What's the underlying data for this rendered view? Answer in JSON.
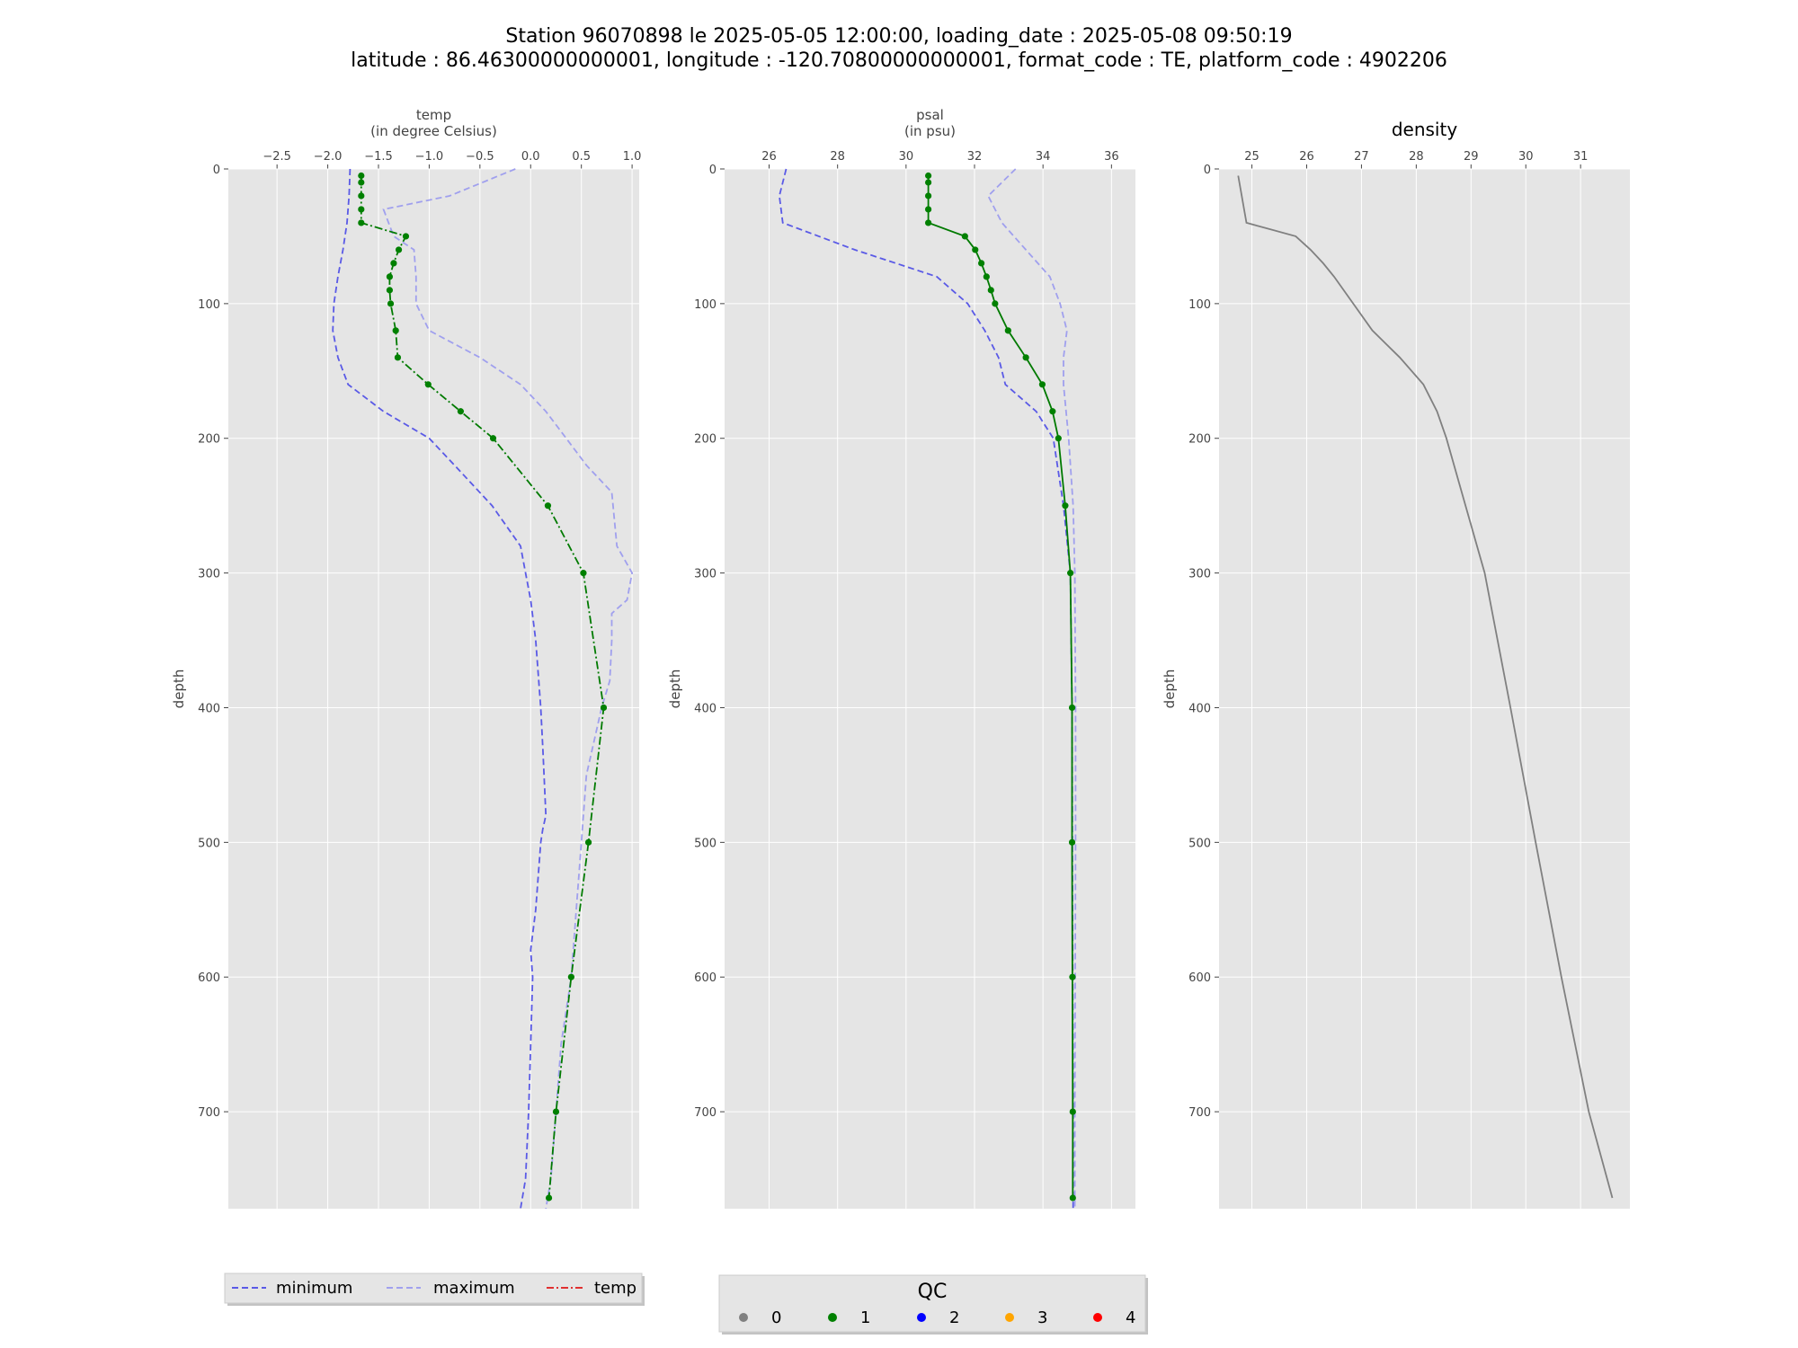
{
  "title_line1": "Station 96070898 le 2025-05-05 12:00:00, loading_date : 2025-05-08 09:50:19",
  "title_line2": "latitude : 86.46300000000001, longitude : -120.70800000000001, format_code : TE, platform_code : 4902206",
  "colors": {
    "panel_bg": "#e5e5e5",
    "grid": "#ffffff",
    "minimum": "#5a5ae6",
    "maximum": "#a0a0ee",
    "obs_line": "#007a00",
    "density_line": "#808080",
    "qc0": "#808080",
    "qc1": "#008000",
    "qc2": "#0000ff",
    "qc3": "#ffa500",
    "qc4": "#ff0000",
    "legend_temp": "#e03030"
  },
  "legend_left": {
    "minimum": "minimum",
    "maximum": "maximum",
    "temp": "temp"
  },
  "legend_qc": {
    "title": "QC",
    "labels": [
      "0",
      "1",
      "2",
      "3",
      "4"
    ]
  },
  "chart_data": [
    {
      "type": "line",
      "xlabel": "temp",
      "xlabel2": "(in degree Celsius)",
      "ylabel": "depth",
      "xlim": [
        -2.98,
        1.07
      ],
      "ylim": [
        772,
        0
      ],
      "xticks": [
        -2.5,
        -2.0,
        -1.5,
        -1.0,
        -0.5,
        0.0,
        0.5,
        1.0
      ],
      "xtick_labels": [
        "−2.5",
        "−2.0",
        "−1.5",
        "−1.0",
        "−0.5",
        "0.0",
        "0.5",
        "1.0"
      ],
      "yticks": [
        0,
        100,
        200,
        300,
        400,
        500,
        600,
        700
      ],
      "series": [
        {
          "name": "minimum",
          "depth": [
            0,
            20,
            40,
            60,
            80,
            100,
            120,
            140,
            160,
            180,
            200,
            220,
            250,
            280,
            300,
            320,
            350,
            400,
            430,
            480,
            490,
            500,
            550,
            580,
            600,
            650,
            700,
            750,
            772
          ],
          "values": [
            -1.78,
            -1.79,
            -1.81,
            -1.85,
            -1.9,
            -1.94,
            -1.95,
            -1.9,
            -1.8,
            -1.45,
            -1.0,
            -0.75,
            -0.38,
            -0.1,
            -0.05,
            0.0,
            0.05,
            0.1,
            0.12,
            0.15,
            0.12,
            0.1,
            0.05,
            0.0,
            0.02,
            0.0,
            -0.02,
            -0.05,
            -0.1
          ]
        },
        {
          "name": "maximum",
          "depth": [
            0,
            20,
            30,
            50,
            60,
            80,
            100,
            120,
            140,
            160,
            180,
            200,
            220,
            240,
            280,
            300,
            320,
            330,
            350,
            380,
            400,
            450,
            500,
            550,
            600,
            650,
            700,
            750,
            772
          ],
          "values": [
            -0.15,
            -0.8,
            -1.45,
            -1.35,
            -1.15,
            -1.13,
            -1.13,
            -1.0,
            -0.5,
            -0.1,
            0.15,
            0.35,
            0.55,
            0.8,
            0.85,
            1.0,
            0.95,
            0.8,
            0.8,
            0.78,
            0.7,
            0.55,
            0.5,
            0.45,
            0.4,
            0.3,
            0.25,
            0.2,
            0.15
          ]
        },
        {
          "name": "temp",
          "depth": [
            5,
            10,
            20,
            30,
            40,
            50,
            60,
            70,
            80,
            90,
            100,
            120,
            140,
            160,
            180,
            200,
            250,
            300,
            400,
            500,
            600,
            700,
            764
          ],
          "values": [
            -1.67,
            -1.67,
            -1.67,
            -1.67,
            -1.67,
            -1.23,
            -1.3,
            -1.35,
            -1.39,
            -1.39,
            -1.38,
            -1.33,
            -1.31,
            -1.01,
            -0.69,
            -0.37,
            0.17,
            0.52,
            0.72,
            0.57,
            0.4,
            0.25,
            0.18
          ],
          "qc": 1
        }
      ]
    },
    {
      "type": "line",
      "xlabel": "psal",
      "xlabel2": "(in psu)",
      "ylabel": "depth",
      "xlim": [
        24.7,
        36.7
      ],
      "ylim": [
        772,
        0
      ],
      "xticks": [
        26,
        28,
        30,
        32,
        34,
        36
      ],
      "xtick_labels": [
        "26",
        "28",
        "30",
        "32",
        "34",
        "36"
      ],
      "yticks": [
        0,
        100,
        200,
        300,
        400,
        500,
        600,
        700
      ],
      "series": [
        {
          "name": "minimum",
          "depth": [
            0,
            20,
            40,
            60,
            80,
            100,
            120,
            140,
            160,
            180,
            200,
            250,
            300,
            400,
            500,
            600,
            700,
            772
          ],
          "values": [
            26.5,
            26.3,
            26.4,
            28.5,
            30.9,
            31.8,
            32.3,
            32.7,
            32.9,
            33.8,
            34.3,
            34.6,
            34.8,
            34.85,
            34.86,
            34.87,
            34.88,
            34.88
          ]
        },
        {
          "name": "maximum",
          "depth": [
            0,
            20,
            40,
            60,
            80,
            100,
            120,
            140,
            160,
            200,
            250,
            300,
            400,
            500,
            600,
            700,
            772
          ],
          "values": [
            33.2,
            32.4,
            32.8,
            33.5,
            34.2,
            34.5,
            34.7,
            34.6,
            34.6,
            34.75,
            34.88,
            34.93,
            34.95,
            34.95,
            34.94,
            34.93,
            34.93
          ]
        },
        {
          "name": "psal",
          "depth": [
            5,
            10,
            20,
            30,
            40,
            50,
            60,
            70,
            80,
            90,
            100,
            120,
            140,
            160,
            180,
            200,
            250,
            300,
            400,
            500,
            600,
            700,
            764
          ],
          "values": [
            30.65,
            30.65,
            30.65,
            30.65,
            30.65,
            31.72,
            32.02,
            32.2,
            32.35,
            32.48,
            32.6,
            32.98,
            33.5,
            33.98,
            34.28,
            34.45,
            34.65,
            34.8,
            34.85,
            34.85,
            34.86,
            34.87,
            34.87
          ],
          "qc": 1
        }
      ]
    },
    {
      "type": "line",
      "title": "density",
      "ylabel": "depth",
      "xlim": [
        24.4,
        31.9
      ],
      "ylim": [
        772,
        0
      ],
      "xticks": [
        25,
        26,
        27,
        28,
        29,
        30,
        31
      ],
      "xtick_labels": [
        "25",
        "26",
        "27",
        "28",
        "29",
        "30",
        "31"
      ],
      "yticks": [
        0,
        100,
        200,
        300,
        400,
        500,
        600,
        700
      ],
      "series": [
        {
          "name": "density",
          "depth": [
            5,
            40,
            50,
            60,
            70,
            80,
            100,
            120,
            140,
            160,
            180,
            200,
            250,
            300,
            400,
            500,
            600,
            700,
            764
          ],
          "values": [
            24.75,
            24.9,
            25.8,
            26.07,
            26.3,
            26.5,
            26.85,
            27.2,
            27.7,
            28.13,
            28.38,
            28.55,
            28.9,
            29.25,
            29.72,
            30.18,
            30.65,
            31.15,
            31.58
          ]
        }
      ]
    }
  ]
}
